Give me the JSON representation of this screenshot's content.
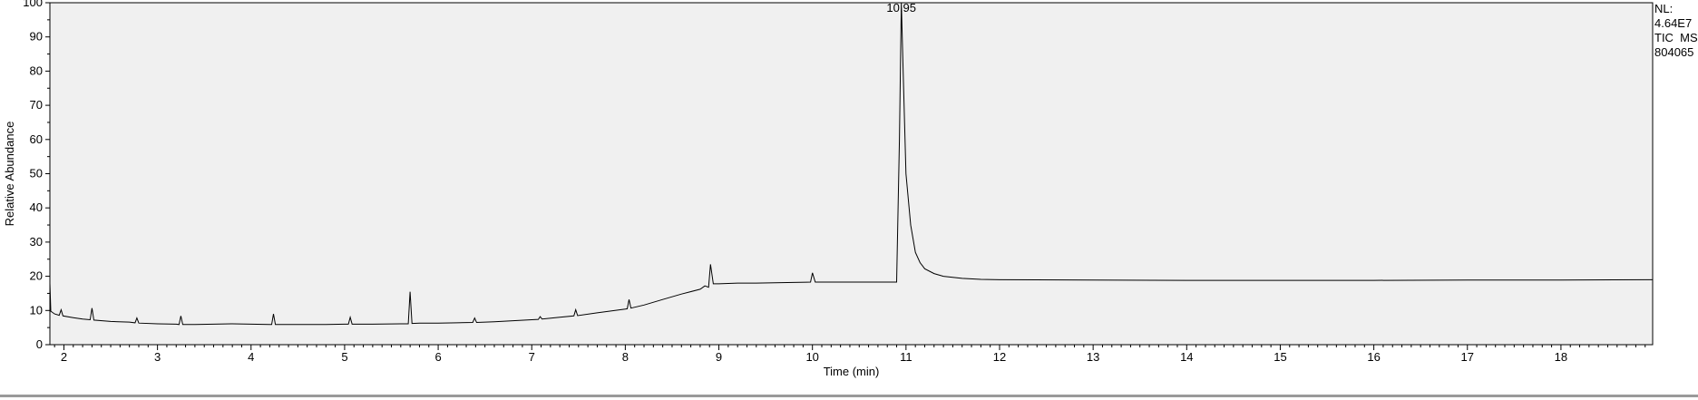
{
  "chart_data": {
    "type": "line",
    "xlabel": "Time (min)",
    "ylabel": "Relative Abundance",
    "xlim": [
      1.85,
      18.98
    ],
    "ylim": [
      0,
      100
    ],
    "x_ticks": [
      2,
      3,
      4,
      5,
      6,
      7,
      8,
      9,
      10,
      11,
      12,
      13,
      14,
      15,
      16,
      17,
      18
    ],
    "y_ticks": [
      0,
      10,
      20,
      30,
      40,
      50,
      60,
      70,
      80,
      90,
      100
    ],
    "grid": false,
    "peak_label": "10.95",
    "peak_label_x": 10.95,
    "series": [
      {
        "color": "#000000",
        "points": [
          [
            1.85,
            18
          ],
          [
            1.86,
            9.8
          ],
          [
            1.9,
            9.0
          ],
          [
            1.95,
            8.6
          ],
          [
            1.97,
            10.2
          ],
          [
            1.99,
            8.4
          ],
          [
            2.1,
            7.9
          ],
          [
            2.2,
            7.5
          ],
          [
            2.28,
            7.3
          ],
          [
            2.3,
            10.7
          ],
          [
            2.32,
            7.2
          ],
          [
            2.5,
            6.8
          ],
          [
            2.7,
            6.6
          ],
          [
            2.76,
            6.4
          ],
          [
            2.78,
            7.8
          ],
          [
            2.8,
            6.3
          ],
          [
            3.0,
            6.1
          ],
          [
            3.2,
            6.0
          ],
          [
            3.23,
            5.9
          ],
          [
            3.25,
            8.4
          ],
          [
            3.27,
            5.9
          ],
          [
            3.4,
            5.9
          ],
          [
            3.6,
            6.0
          ],
          [
            3.8,
            6.1
          ],
          [
            4.0,
            6.0
          ],
          [
            4.2,
            5.9
          ],
          [
            4.22,
            5.9
          ],
          [
            4.24,
            9.0
          ],
          [
            4.26,
            5.9
          ],
          [
            4.5,
            5.9
          ],
          [
            4.8,
            5.9
          ],
          [
            5.0,
            6.0
          ],
          [
            5.04,
            6.0
          ],
          [
            5.06,
            8.0
          ],
          [
            5.08,
            6.0
          ],
          [
            5.3,
            6.0
          ],
          [
            5.6,
            6.1
          ],
          [
            5.68,
            6.1
          ],
          [
            5.7,
            15.5
          ],
          [
            5.72,
            6.2
          ],
          [
            5.8,
            6.3
          ],
          [
            6.0,
            6.3
          ],
          [
            6.2,
            6.4
          ],
          [
            6.37,
            6.5
          ],
          [
            6.39,
            7.8
          ],
          [
            6.41,
            6.5
          ],
          [
            6.6,
            6.7
          ],
          [
            6.8,
            7.0
          ],
          [
            7.0,
            7.3
          ],
          [
            7.07,
            7.4
          ],
          [
            7.09,
            8.2
          ],
          [
            7.11,
            7.5
          ],
          [
            7.3,
            8.0
          ],
          [
            7.45,
            8.4
          ],
          [
            7.47,
            10.2
          ],
          [
            7.49,
            8.5
          ],
          [
            7.7,
            9.3
          ],
          [
            8.0,
            10.4
          ],
          [
            8.02,
            10.5
          ],
          [
            8.04,
            13.2
          ],
          [
            8.06,
            10.7
          ],
          [
            8.2,
            11.6
          ],
          [
            8.4,
            13.2
          ],
          [
            8.6,
            14.8
          ],
          [
            8.8,
            16.2
          ],
          [
            8.85,
            17.2
          ],
          [
            8.89,
            16.8
          ],
          [
            8.91,
            23.5
          ],
          [
            8.94,
            17.8
          ],
          [
            9.0,
            17.8
          ],
          [
            9.2,
            18.0
          ],
          [
            9.4,
            18.0
          ],
          [
            9.6,
            18.1
          ],
          [
            9.8,
            18.2
          ],
          [
            9.98,
            18.3
          ],
          [
            10.0,
            21.0
          ],
          [
            10.03,
            18.3
          ],
          [
            10.2,
            18.3
          ],
          [
            10.5,
            18.3
          ],
          [
            10.8,
            18.3
          ],
          [
            10.9,
            18.3
          ],
          [
            10.93,
            60
          ],
          [
            10.95,
            100
          ],
          [
            10.97,
            80
          ],
          [
            11.0,
            50
          ],
          [
            11.05,
            35
          ],
          [
            11.1,
            27
          ],
          [
            11.15,
            24
          ],
          [
            11.2,
            22.2
          ],
          [
            11.3,
            20.8
          ],
          [
            11.4,
            20.0
          ],
          [
            11.6,
            19.4
          ],
          [
            11.8,
            19.1
          ],
          [
            12.0,
            19.0
          ],
          [
            13.0,
            18.9
          ],
          [
            14.0,
            18.8
          ],
          [
            15.0,
            18.8
          ],
          [
            16.0,
            18.8
          ],
          [
            17.0,
            18.9
          ],
          [
            18.0,
            18.9
          ],
          [
            18.98,
            19.0
          ]
        ]
      }
    ]
  },
  "side_info": {
    "nl_label": "NL:",
    "nl_value": "4.64E7",
    "trace": "TIC  MS",
    "file": "804065"
  }
}
